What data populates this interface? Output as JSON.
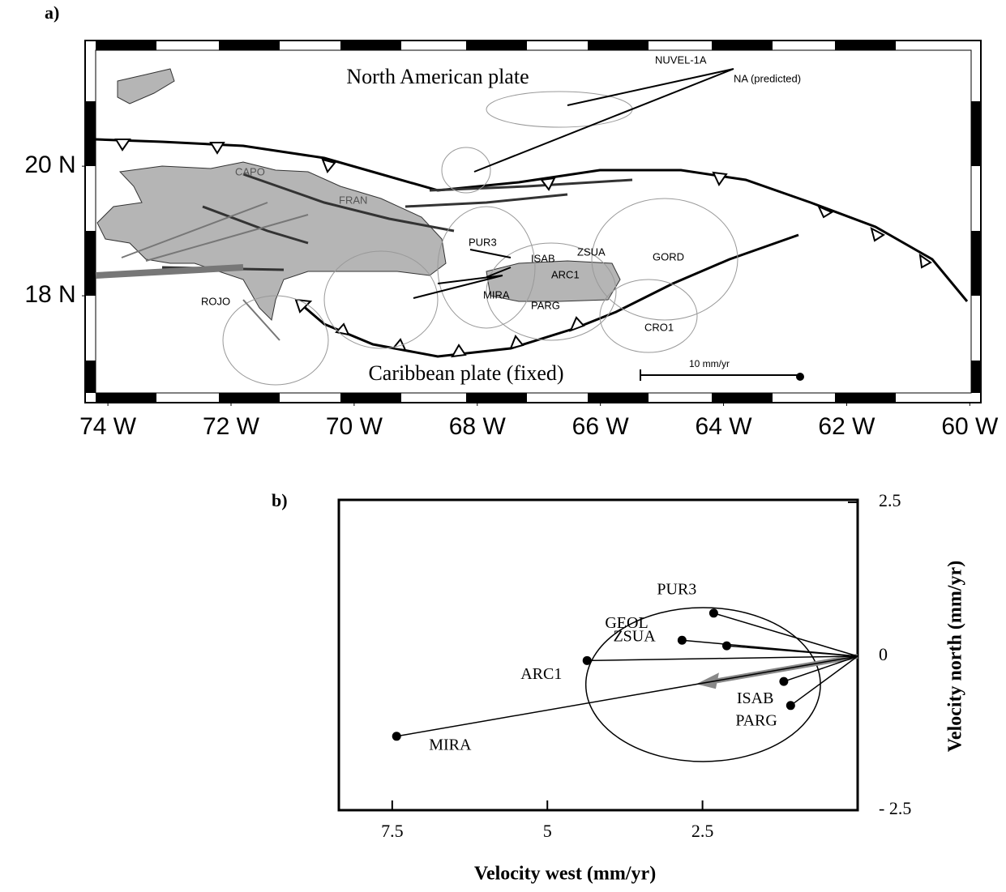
{
  "map": {
    "label": "a)",
    "xlim": [
      74.37,
      59.82
    ],
    "ylim": [
      16.35,
      21.94
    ],
    "xticks": [
      {
        "value": 74,
        "label": "74 W"
      },
      {
        "value": 72,
        "label": "72 W"
      },
      {
        "value": 70,
        "label": "70 W"
      },
      {
        "value": 68,
        "label": "68 W"
      },
      {
        "value": 66,
        "label": "66 W"
      },
      {
        "value": 64,
        "label": "64 W"
      },
      {
        "value": 62,
        "label": "62 W"
      },
      {
        "value": 60,
        "label": "60 W"
      }
    ],
    "yticks": [
      {
        "value": 20,
        "label": "20 N"
      },
      {
        "value": 18,
        "label": "18 N"
      }
    ],
    "north_plate": "North American plate",
    "south_plate": "Caribbean plate (fixed)",
    "model": "NUVEL-1A",
    "predicted": "NA (predicted)",
    "scale": "10 mm/yr",
    "stations": [
      "CAPO",
      "FRAN",
      "PUR3",
      "ISAB",
      "ZSUA",
      "ARC1",
      "MIRA",
      "PARG",
      "GORD",
      "CRO1",
      "ROJO"
    ]
  },
  "chart_data": {
    "type": "vector",
    "label": "b)",
    "xlabel": "Velocity west (mm/yr)",
    "ylabel": "Velocity north (mm/yr)",
    "xlim": [
      8.36,
      0
    ],
    "ylim": [
      -2.5,
      2.5
    ],
    "xticks": [
      7.5,
      5,
      2.5
    ],
    "yticks": [
      2.5,
      0,
      {
        "value": -2.5,
        "label": "- 2.5"
      }
    ],
    "points": {
      "names": [
        "PUR3",
        "GEOL",
        "ZSUA",
        "ARC1",
        "ISAB",
        "PARG",
        "MIRA"
      ],
      "x": [
        2.32,
        2.83,
        2.11,
        4.36,
        1.19,
        1.08,
        7.43
      ],
      "y": [
        0.7,
        0.26,
        0.17,
        -0.07,
        -0.41,
        -0.8,
        -1.3
      ]
    },
    "predicted": {
      "x": 2.6,
      "y": -0.45,
      "color": "#888888"
    },
    "ellipse": {
      "center": [
        2.49,
        -0.46
      ],
      "radii": [
        1.89,
        1.25
      ]
    }
  }
}
